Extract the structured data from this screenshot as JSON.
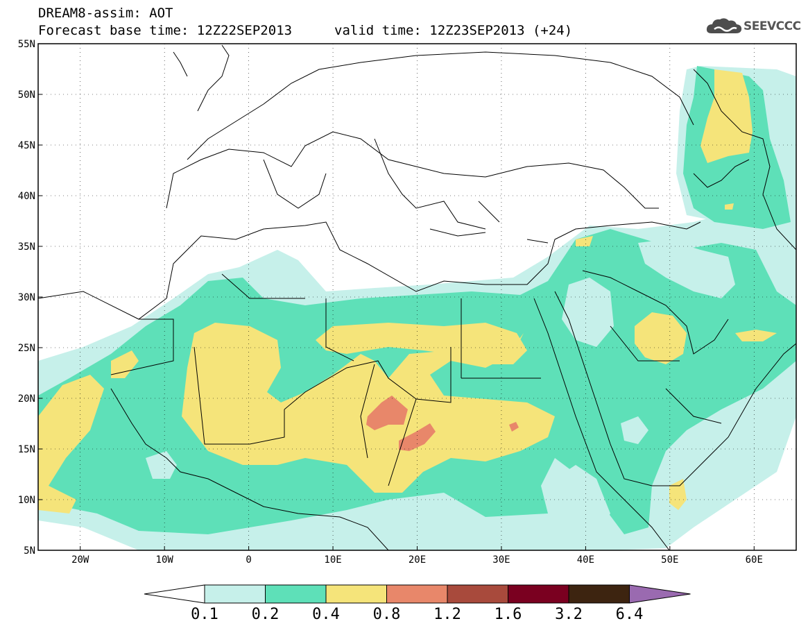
{
  "header": {
    "line1": "DREAM8-assim: AOT",
    "line2": "Forecast base time: 12Z22SEP2013",
    "line3": "valid time: 12Z23SEP2013 (+24)"
  },
  "logo": {
    "text": "SEEVCCC",
    "icon": "cloud-logo-icon"
  },
  "map": {
    "lon_range": [
      -25,
      65
    ],
    "lat_range": [
      5,
      55
    ],
    "x_ticks": [
      {
        "lon": -20,
        "label": "20W"
      },
      {
        "lon": -10,
        "label": "10W"
      },
      {
        "lon": 0,
        "label": "0"
      },
      {
        "lon": 10,
        "label": "10E"
      },
      {
        "lon": 20,
        "label": "20E"
      },
      {
        "lon": 30,
        "label": "30E"
      },
      {
        "lon": 40,
        "label": "40E"
      },
      {
        "lon": 50,
        "label": "50E"
      },
      {
        "lon": 60,
        "label": "60E"
      }
    ],
    "y_ticks": [
      {
        "lat": 55,
        "label": "55N"
      },
      {
        "lat": 50,
        "label": "50N"
      },
      {
        "lat": 45,
        "label": "45N"
      },
      {
        "lat": 40,
        "label": "40N"
      },
      {
        "lat": 35,
        "label": "35N"
      },
      {
        "lat": 30,
        "label": "30N"
      },
      {
        "lat": 25,
        "label": "25N"
      },
      {
        "lat": 20,
        "label": "20N"
      },
      {
        "lat": 15,
        "label": "15N"
      },
      {
        "lat": 10,
        "label": "10N"
      },
      {
        "lat": 5,
        "label": "5N"
      }
    ],
    "grid": "dotted",
    "levels": [
      {
        "range": "0.1-0.2",
        "color": "#c6f0ea"
      },
      {
        "range": "0.2-0.4",
        "color": "#5ee0b8"
      },
      {
        "range": "0.4-0.8",
        "color": "#f5e47a"
      },
      {
        "range": "0.8-1.2",
        "color": "#e8876a"
      }
    ]
  },
  "colorbar": {
    "labels": [
      "0.1",
      "0.2",
      "0.4",
      "0.8",
      "1.2",
      "1.6",
      "3.2",
      "6.4"
    ],
    "low_end": "#ffffff",
    "colors": [
      "#c6f0ea",
      "#5ee0b8",
      "#f5e47a",
      "#e8876a",
      "#a84a3c",
      "#7a0020",
      "#3d2410"
    ],
    "high_end": "#9a6ab0"
  }
}
